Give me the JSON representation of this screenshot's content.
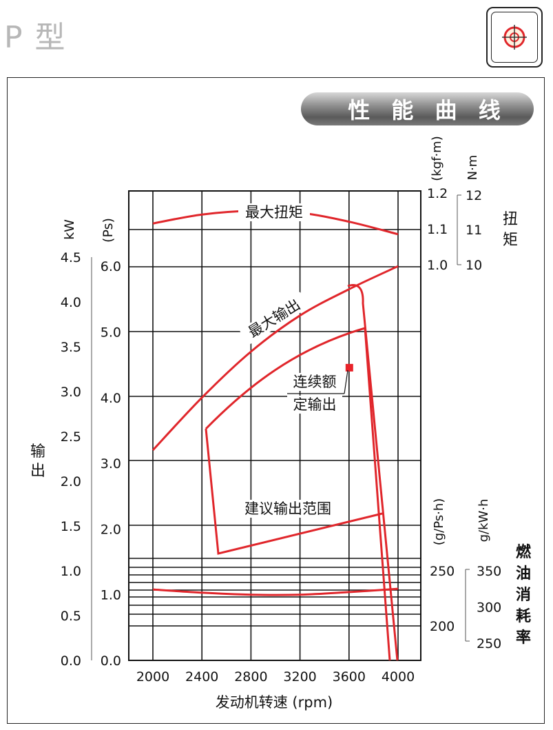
{
  "page_title": "P 型",
  "banner": "性 能 曲 线",
  "logo_icon": "crosshair-circle-icon",
  "colors": {
    "curve": "#e0262b",
    "grid": "#111111",
    "banner_text": "#ffffff"
  },
  "chart_data": {
    "type": "line",
    "title": "性能曲线",
    "xlabel": "发动机转速 (rpm)",
    "x_ticks": [
      "2000",
      "2400",
      "2800",
      "3200",
      "3600",
      "4000"
    ],
    "xlim": [
      1600,
      4000
    ],
    "grid": true,
    "left_axes": {
      "kw": {
        "unit": "kW",
        "ticks": [
          "4.5",
          "4.0",
          "3.5",
          "3.0",
          "2.5",
          "2.0",
          "1.5",
          "1.0",
          "0.5",
          "0.0"
        ],
        "range": [
          0,
          4.5
        ]
      },
      "ps": {
        "unit": "(Ps)",
        "ticks": [
          "6.0",
          "5.0",
          "4.0",
          "3.0",
          "2.0",
          "1.0",
          "0.0"
        ],
        "range": [
          0,
          6.0
        ]
      },
      "label": "输出"
    },
    "torque_axes": {
      "kgfm": {
        "unit": "(kgf·m)",
        "ticks": [
          "1.2",
          "1.1",
          "1.0"
        ],
        "range": [
          1.0,
          1.2
        ]
      },
      "nm": {
        "unit": "N·m",
        "ticks": [
          "12",
          "11",
          "10"
        ],
        "range": [
          10,
          12
        ]
      },
      "label": "扭矩"
    },
    "fuel_axes": {
      "gpsh": {
        "unit": "(g/Ps·h)",
        "ticks": [
          "250",
          "200"
        ],
        "range": [
          200,
          250
        ]
      },
      "gkwh": {
        "unit": "g/kW·h",
        "ticks": [
          "350",
          "300",
          "250"
        ],
        "range": [
          250,
          350
        ]
      },
      "label": "燃油消耗率"
    },
    "series": [
      {
        "name": "最大扭矩",
        "axis": "kgfm",
        "x": [
          2000,
          2400,
          2800,
          3200,
          3600,
          4000
        ],
        "y": [
          1.115,
          1.14,
          1.15,
          1.145,
          1.12,
          1.085
        ]
      },
      {
        "name": "最大输出",
        "axis": "ps",
        "x": [
          2000,
          2400,
          2800,
          3200,
          3600,
          4000
        ],
        "y": [
          3.2,
          4.0,
          4.7,
          5.25,
          5.65,
          6.0
        ]
      },
      {
        "name": "燃油消耗率",
        "axis": "gpsh",
        "x": [
          2000,
          2400,
          2800,
          3200,
          3600,
          4000
        ],
        "y": [
          1.08,
          1.03,
          1.0,
          1.0,
          1.04,
          1.09
        ],
        "y_axis_ref": "ps"
      }
    ],
    "annotations": {
      "continuous_label_line1": "连续额",
      "continuous_label_line2": "定输出",
      "recommended_range": "建议输出范围",
      "continuous_point": {
        "x": 3600,
        "ps": 4.45
      }
    }
  }
}
